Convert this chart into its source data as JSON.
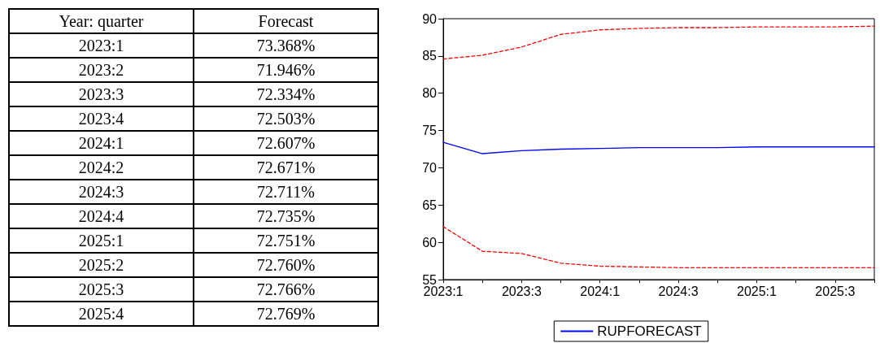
{
  "chart_data": [
    {
      "type": "other",
      "annotations": [
        "Year: quarter",
        "Forecast"
      ],
      "categories": [
        "2023:1",
        "2023:2",
        "2023:3",
        "2023:4",
        "2024:1",
        "2024:2",
        "2024:3",
        "2024:4",
        "2025:1",
        "2025:2",
        "2025:3",
        "2025:4"
      ],
      "value_labels": [
        "73.368%",
        "71.946%",
        "72.334%",
        "72.503%",
        "72.607%",
        "72.671%",
        "72.711%",
        "72.735%",
        "72.751%",
        "72.760%",
        "72.766%",
        "72.769%"
      ]
    },
    {
      "type": "line",
      "categories": [
        "2023:1",
        null,
        "2023:3",
        null,
        "2024:1",
        null,
        "2024:3",
        null,
        "2025:1",
        null,
        "2025:3",
        null
      ],
      "series": [
        {
          "name": "RUPFORECAST",
          "color": "#0000ff",
          "line_style": "solid",
          "values": [
            73.4,
            71.9,
            72.3,
            72.5,
            72.6,
            72.7,
            72.7,
            72.7,
            72.8,
            72.8,
            72.8,
            72.8
          ]
        },
        {
          "color": "#ff0000",
          "line_style": "dashed",
          "values": [
            84.6,
            85.1,
            86.2,
            87.9,
            88.5,
            88.7,
            88.8,
            88.8,
            88.9,
            88.9,
            88.9,
            89.0
          ]
        },
        {
          "color": "#ff0000",
          "line_style": "dashed",
          "values": [
            62.1,
            58.8,
            58.5,
            57.2,
            56.8,
            56.7,
            56.6,
            56.6,
            56.6,
            56.6,
            56.6,
            56.6
          ]
        }
      ],
      "ylim": [
        55,
        90
      ],
      "yticks": [
        55,
        60,
        65,
        70,
        75,
        80,
        85,
        90
      ],
      "grid": false,
      "legend": "bottom",
      "marker": "none"
    }
  ]
}
